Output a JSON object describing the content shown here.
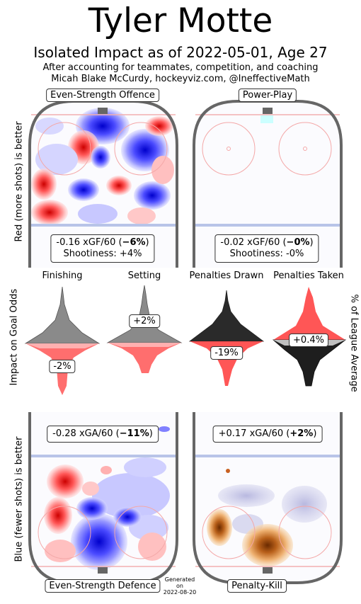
{
  "header": {
    "title": "Tyler Motte",
    "subtitle": "Isolated Impact as of 2022-05-01, Age 27",
    "byline1": "After accounting for teammates, competition, and coaching",
    "byline2": "Micah Blake McCurdy, hockeyviz.com, @IneffectiveMath"
  },
  "panels": {
    "ev_offence": {
      "label": "Even-Strength Offence",
      "stat_prefix": "-0.16 xGF/60 (",
      "stat_bold": "−6%",
      "stat_suffix": ")",
      "shootiness": "Shootiness: +4%"
    },
    "power_play": {
      "label": "Power-Play",
      "stat_prefix": "-0.02 xGF/60 (",
      "stat_bold": "−0%",
      "stat_suffix": ")",
      "shootiness": "Shootiness: -0%"
    },
    "ev_defence": {
      "label": "Even-Strength Defence",
      "stat_prefix": "-0.28 xGA/60 (",
      "stat_bold": "−11%",
      "stat_suffix": ")"
    },
    "penalty_kill": {
      "label": "Penalty-Kill",
      "stat_prefix": "+0.17 xGA/60 (",
      "stat_bold": "+2%",
      "stat_suffix": ")"
    }
  },
  "axis_labels": {
    "top_left": "Red (more shots) is better",
    "bottom_left": "Blue (fewer shots) is better",
    "middle_left": "Impact on Goal Odds",
    "middle_right": "% of League Average"
  },
  "generated": [
    "Generated",
    "on",
    "2022-08-20"
  ],
  "colors": {
    "positive": "#ff3333",
    "negative": "#2222ff",
    "rink_border": "#666666",
    "grey_violin": "#808080",
    "pk_orange": "#e8a050"
  },
  "chart_data": {
    "type": "violin",
    "categories": [
      "Finishing",
      "Setting",
      "Penalties Drawn",
      "Penalties Taken"
    ],
    "values": [
      -2,
      2,
      -19,
      0.4
    ],
    "labels": [
      "-2%",
      "+2%",
      "-19%",
      "+0.4%"
    ],
    "ylabel_left": "Impact on Goal Odds",
    "ylabel_right": "% of League Average"
  }
}
